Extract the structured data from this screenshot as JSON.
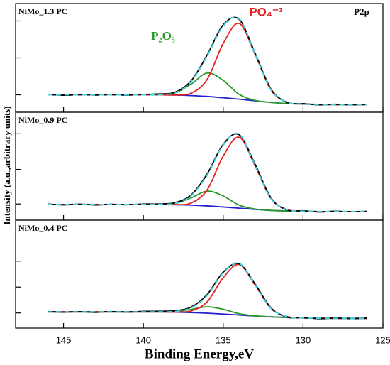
{
  "ylabel": "Intensity (a.u.,arbitrary units)",
  "chart_data": [
    {
      "type": "line",
      "label": "NiMo_1.3 PC",
      "annotations": [
        {
          "text": "P2p",
          "color": "#000000"
        },
        {
          "text": "P₂O₅",
          "color": "#2a9a2a"
        },
        {
          "text": "PO₄⁻³",
          "color": "#e52020"
        }
      ],
      "x": [
        146,
        145,
        144,
        143,
        142,
        141,
        140,
        139,
        138,
        137,
        136,
        135,
        134,
        133,
        132,
        131,
        130,
        129,
        128,
        127,
        126
      ],
      "xlim": [
        148,
        125
      ],
      "ylim": [
        0,
        100
      ],
      "yticks": [
        16,
        50,
        84
      ],
      "series": [
        {
          "color": "#2020d0",
          "values": [
            16,
            16,
            16,
            16,
            16,
            16,
            16,
            16,
            15.8,
            15.3,
            14.5,
            13.3,
            12,
            10.5,
            9,
            8,
            7.5,
            7.2,
            7,
            7,
            7
          ]
        },
        {
          "color": "#2a9a2a",
          "values": [
            16,
            16,
            16,
            16,
            16,
            16,
            16,
            16.1,
            17.8,
            26,
            36.1,
            29.3,
            16.4,
            10.9,
            9,
            8,
            7.5,
            7.2,
            7,
            7,
            7
          ]
        },
        {
          "color": "#e52020",
          "values": [
            16,
            16,
            16,
            16,
            16,
            16,
            16,
            16,
            15.9,
            17.5,
            30.3,
            63.3,
            81.7,
            53,
            20.3,
            9.3,
            7.5,
            7.2,
            7,
            7,
            7
          ]
        },
        {
          "color": "#000000",
          "values": [
            16.5,
            15.6,
            16.2,
            15.8,
            16.3,
            15.7,
            16.4,
            16.8,
            18.5,
            29,
            52.8,
            80.4,
            85.5,
            54.2,
            21.1,
            8.9,
            7.9,
            6.8,
            7.3,
            6.9,
            7.2
          ]
        },
        {
          "color": "#40d0e0",
          "dash": true,
          "values": [
            16,
            16,
            16,
            16,
            16,
            16,
            16,
            16.1,
            17.9,
            28.2,
            51.9,
            79.3,
            86.1,
            53.4,
            20.3,
            9.3,
            7.5,
            7.2,
            7,
            7,
            7
          ]
        }
      ]
    },
    {
      "type": "line",
      "label": "NiMo_0.9 PC",
      "x": [
        146,
        145,
        144,
        143,
        142,
        141,
        140,
        139,
        138,
        137,
        136,
        135,
        134,
        133,
        132,
        131,
        130,
        129,
        128,
        127,
        126
      ],
      "xlim": [
        148,
        125
      ],
      "ylim": [
        0,
        100
      ],
      "yticks": [
        15,
        47,
        80
      ],
      "series": [
        {
          "color": "#2020d0",
          "values": [
            14.5,
            14.5,
            14.5,
            14.5,
            14.5,
            14.5,
            14.5,
            14.5,
            14.3,
            13.9,
            13.2,
            12.2,
            11.1,
            10,
            9,
            8.5,
            8.2,
            8,
            8,
            8,
            8
          ]
        },
        {
          "color": "#2a9a2a",
          "values": [
            14.5,
            14.5,
            14.5,
            14.5,
            14.5,
            14.5,
            14.5,
            14.6,
            15.5,
            20.7,
            26.9,
            22.4,
            13.9,
            10.3,
            9,
            8.5,
            8.2,
            8,
            8,
            8,
            8
          ]
        },
        {
          "color": "#e52020",
          "values": [
            14.5,
            14.5,
            14.5,
            14.5,
            14.5,
            14.5,
            14.5,
            14.5,
            14.4,
            15.9,
            28.1,
            59.4,
            76.8,
            50.1,
            19.7,
            9.8,
            8.3,
            8,
            8,
            8,
            8
          ]
        },
        {
          "color": "#000000",
          "values": [
            14.9,
            14.2,
            14.8,
            14.1,
            14.7,
            14.3,
            14.9,
            15,
            16.3,
            23.5,
            42.9,
            70.3,
            79.1,
            51.6,
            20.4,
            9.4,
            8.7,
            7.6,
            8.3,
            7.8,
            8.2
          ]
        },
        {
          "color": "#40d0e0",
          "dash": true,
          "values": [
            14.5,
            14.5,
            14.5,
            14.5,
            14.5,
            14.5,
            14.5,
            14.6,
            15.6,
            22.7,
            41.8,
            69.6,
            79.6,
            50.4,
            19.7,
            9.8,
            8.3,
            8,
            8,
            8,
            8
          ]
        }
      ]
    },
    {
      "type": "line",
      "label": "NiMo_0.4 PC",
      "xlabel": "Binding Energy,eV",
      "x": [
        146,
        145,
        144,
        143,
        142,
        141,
        140,
        139,
        138,
        137,
        136,
        135,
        134,
        133,
        132,
        131,
        130,
        129,
        128,
        127,
        126
      ],
      "xlim": [
        148,
        125
      ],
      "xticks": [
        145,
        140,
        135,
        130,
        125
      ],
      "ylim": [
        0,
        100
      ],
      "yticks": [
        14,
        38,
        62
      ],
      "series": [
        {
          "color": "#2020d0",
          "values": [
            15,
            15,
            15,
            15,
            15,
            15,
            15,
            15,
            14.8,
            14.4,
            13.8,
            13,
            12.1,
            11.2,
            10.4,
            9.8,
            9.4,
            9.2,
            9,
            9,
            9
          ]
        },
        {
          "color": "#2a9a2a",
          "values": [
            15,
            15,
            15,
            15,
            15,
            15,
            15,
            15,
            15.3,
            17.3,
            19.7,
            17.4,
            13.3,
            11.3,
            10.4,
            9.8,
            9.4,
            9.2,
            9,
            9,
            9
          ]
        },
        {
          "color": "#e52020",
          "values": [
            15,
            15,
            15,
            15,
            15,
            15,
            15,
            15,
            14.9,
            15.9,
            24.4,
            46.6,
            58.9,
            39.7,
            18,
            10.7,
            9.4,
            9.2,
            9,
            9,
            9
          ]
        },
        {
          "color": "#000000",
          "values": [
            15.4,
            14.7,
            15.2,
            14.6,
            15.3,
            14.8,
            15.5,
            15.6,
            16.1,
            19.5,
            31.2,
            51.8,
            59.6,
            40.7,
            18.6,
            10.2,
            9.8,
            8.7,
            9.3,
            8.8,
            9.2
          ]
        },
        {
          "color": "#40d0e0",
          "dash": true,
          "values": [
            15,
            15,
            15,
            15,
            15,
            15,
            15,
            15,
            15.4,
            18.8,
            30.3,
            51,
            60.1,
            39.8,
            18,
            10.7,
            9.4,
            9.2,
            9,
            9,
            9
          ]
        }
      ]
    }
  ]
}
